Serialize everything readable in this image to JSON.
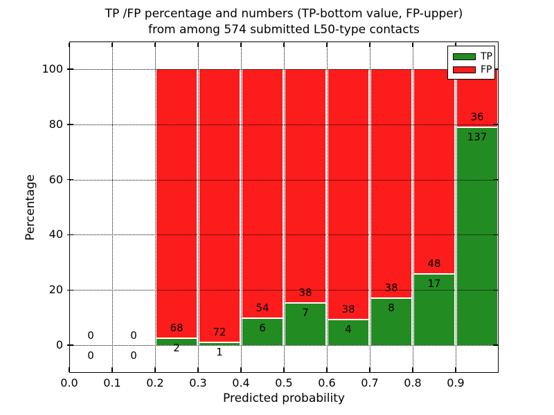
{
  "figure": {
    "title_line1": "TP /FP percentage and numbers (TP-bottom value, FP-upper)",
    "title_line2": "from among 574 submitted L50-type contacts",
    "xlabel": "Predicted probability",
    "ylabel": "Percentage"
  },
  "chart_data": {
    "type": "bar",
    "stacked": true,
    "title": "TP /FP percentage and numbers (TP-bottom value, FP-upper)\nfrom among 574 submitted L50-type contacts",
    "xlabel": "Predicted probability",
    "ylabel": "Percentage",
    "xlim": [
      0.0,
      1.0
    ],
    "ylim": [
      -10,
      110
    ],
    "xticks": [
      "0.0",
      "0.1",
      "0.2",
      "0.3",
      "0.4",
      "0.5",
      "0.6",
      "0.7",
      "0.8",
      "0.9"
    ],
    "yticks": [
      0,
      20,
      40,
      60,
      80,
      100
    ],
    "grid": true,
    "grid_style": "dotted",
    "legend_position": "upper right",
    "total_contacts": 574,
    "series": [
      {
        "name": "TP",
        "color": "#228B22"
      },
      {
        "name": "FP",
        "color": "#fc1c1c"
      }
    ],
    "bins": [
      {
        "range": [
          0.0,
          0.1
        ],
        "tp_count": 0,
        "fp_count": 0,
        "tp_pct": 0,
        "fp_pct": 0
      },
      {
        "range": [
          0.1,
          0.2
        ],
        "tp_count": 0,
        "fp_count": 0,
        "tp_pct": 0,
        "fp_pct": 0
      },
      {
        "range": [
          0.2,
          0.3
        ],
        "tp_count": 2,
        "fp_count": 68,
        "tp_pct": 2.86,
        "fp_pct": 97.14
      },
      {
        "range": [
          0.3,
          0.4
        ],
        "tp_count": 1,
        "fp_count": 72,
        "tp_pct": 1.37,
        "fp_pct": 98.63
      },
      {
        "range": [
          0.4,
          0.5
        ],
        "tp_count": 6,
        "fp_count": 54,
        "tp_pct": 10.0,
        "fp_pct": 90.0
      },
      {
        "range": [
          0.5,
          0.6
        ],
        "tp_count": 7,
        "fp_count": 38,
        "tp_pct": 15.56,
        "fp_pct": 84.44
      },
      {
        "range": [
          0.6,
          0.7
        ],
        "tp_count": 4,
        "fp_count": 38,
        "tp_pct": 9.52,
        "fp_pct": 90.48
      },
      {
        "range": [
          0.7,
          0.8
        ],
        "tp_count": 8,
        "fp_count": 38,
        "tp_pct": 17.39,
        "fp_pct": 82.61
      },
      {
        "range": [
          0.8,
          0.9
        ],
        "tp_count": 17,
        "fp_count": 48,
        "tp_pct": 26.15,
        "fp_pct": 73.85
      },
      {
        "range": [
          0.9,
          1.0
        ],
        "tp_count": 137,
        "fp_count": 36,
        "tp_pct": 79.19,
        "fp_pct": 20.81
      }
    ]
  }
}
